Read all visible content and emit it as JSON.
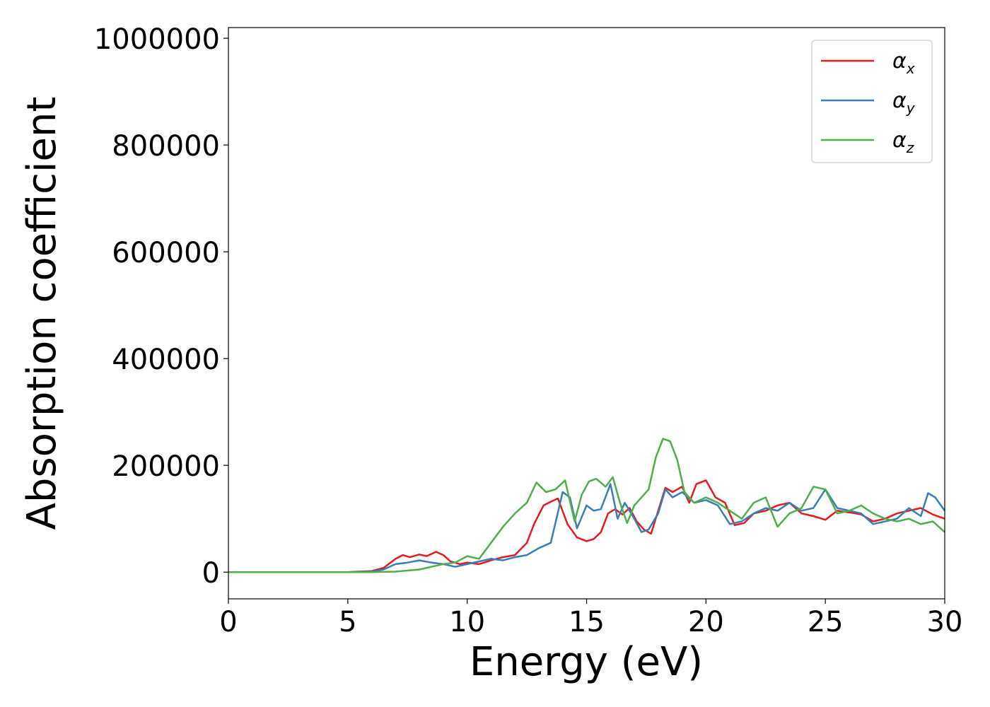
{
  "chart_data": {
    "type": "line",
    "xlabel": "Energy (eV)",
    "ylabel": "Absorption coefficient",
    "xlim": [
      0,
      30
    ],
    "ylim": [
      -50000,
      1020000
    ],
    "xticks": [
      0,
      5,
      10,
      15,
      20,
      25,
      30
    ],
    "xtick_labels": [
      "0",
      "5",
      "10",
      "15",
      "20",
      "25",
      "30"
    ],
    "yticks": [
      0,
      200000,
      400000,
      600000,
      800000,
      1000000
    ],
    "ytick_labels": [
      "0",
      "200000",
      "400000",
      "600000",
      "800000",
      "1000000"
    ],
    "grid": false,
    "legend_position": "top-right",
    "series": [
      {
        "name": "α",
        "subscript": "x",
        "color": "#e41a1c",
        "x": [
          0,
          5,
          6,
          6.5,
          7,
          7.3,
          7.6,
          8,
          8.3,
          8.7,
          9,
          9.3,
          9.7,
          10,
          10.5,
          11,
          11.5,
          12,
          12.5,
          12.8,
          13.2,
          13.5,
          13.8,
          14.2,
          14.6,
          15,
          15.3,
          15.6,
          15.9,
          16.2,
          16.5,
          16.8,
          17.1,
          17.4,
          17.7,
          18,
          18.3,
          18.6,
          19,
          19.3,
          19.6,
          20,
          20.4,
          20.8,
          21.2,
          21.6,
          22,
          22.5,
          23,
          23.5,
          24,
          24.5,
          25,
          25.5,
          26,
          26.5,
          27,
          27.5,
          28,
          28.5,
          29,
          29.5,
          30
        ],
        "y": [
          0,
          0,
          2000,
          8000,
          25000,
          32000,
          28000,
          33000,
          30000,
          38000,
          32000,
          20000,
          15000,
          18000,
          15000,
          22000,
          28000,
          32000,
          55000,
          90000,
          125000,
          132000,
          138000,
          90000,
          65000,
          58000,
          62000,
          75000,
          110000,
          118000,
          108000,
          120000,
          95000,
          80000,
          72000,
          115000,
          158000,
          150000,
          160000,
          130000,
          165000,
          172000,
          140000,
          130000,
          88000,
          92000,
          110000,
          115000,
          125000,
          130000,
          110000,
          105000,
          98000,
          115000,
          112000,
          108000,
          95000,
          100000,
          110000,
          115000,
          120000,
          108000,
          100000
        ]
      },
      {
        "name": "α",
        "subscript": "y",
        "color": "#377eb8",
        "x": [
          0,
          5,
          6,
          6.5,
          7,
          7.5,
          8,
          8.5,
          9,
          9.5,
          10,
          10.5,
          11,
          11.5,
          12,
          12.5,
          13,
          13.5,
          14,
          14.3,
          14.6,
          15,
          15.3,
          15.6,
          16,
          16.3,
          16.6,
          17,
          17.3,
          17.6,
          18,
          18.3,
          18.6,
          19,
          19.5,
          20,
          20.5,
          21,
          21.5,
          22,
          22.5,
          23,
          23.5,
          24,
          24.5,
          25,
          25.5,
          26,
          26.5,
          27,
          27.5,
          28,
          28.5,
          29,
          29.3,
          29.6,
          30
        ],
        "y": [
          0,
          0,
          1000,
          5000,
          15000,
          18000,
          22000,
          18000,
          15000,
          10000,
          15000,
          20000,
          25000,
          22000,
          28000,
          32000,
          45000,
          55000,
          150000,
          140000,
          82000,
          125000,
          115000,
          118000,
          165000,
          100000,
          130000,
          100000,
          75000,
          80000,
          110000,
          155000,
          140000,
          150000,
          130000,
          135000,
          125000,
          90000,
          95000,
          110000,
          120000,
          115000,
          130000,
          115000,
          120000,
          155000,
          120000,
          115000,
          110000,
          90000,
          95000,
          100000,
          120000,
          105000,
          148000,
          140000,
          115000
        ]
      },
      {
        "name": "α",
        "subscript": "z",
        "color": "#4daf4a",
        "x": [
          0,
          5,
          6,
          7,
          8,
          8.5,
          9,
          9.5,
          10,
          10.5,
          11,
          11.5,
          12,
          12.5,
          12.9,
          13.3,
          13.7,
          14.1,
          14.5,
          14.8,
          15.1,
          15.4,
          15.8,
          16.1,
          16.4,
          16.7,
          17,
          17.3,
          17.6,
          17.9,
          18.2,
          18.5,
          18.8,
          19.1,
          19.5,
          20,
          20.5,
          21,
          21.5,
          22,
          22.5,
          23,
          23.5,
          24,
          24.5,
          25,
          25.5,
          26,
          26.5,
          27,
          27.5,
          28,
          28.5,
          29,
          29.5,
          30
        ],
        "y": [
          0,
          0,
          0,
          1000,
          5000,
          10000,
          15000,
          18000,
          30000,
          25000,
          55000,
          85000,
          110000,
          130000,
          168000,
          150000,
          155000,
          172000,
          95000,
          145000,
          170000,
          175000,
          160000,
          178000,
          130000,
          92000,
          125000,
          140000,
          155000,
          215000,
          250000,
          245000,
          210000,
          150000,
          130000,
          140000,
          130000,
          115000,
          100000,
          130000,
          140000,
          85000,
          110000,
          120000,
          160000,
          155000,
          110000,
          115000,
          125000,
          110000,
          100000,
          95000,
          100000,
          90000,
          95000,
          75000
        ]
      }
    ]
  }
}
